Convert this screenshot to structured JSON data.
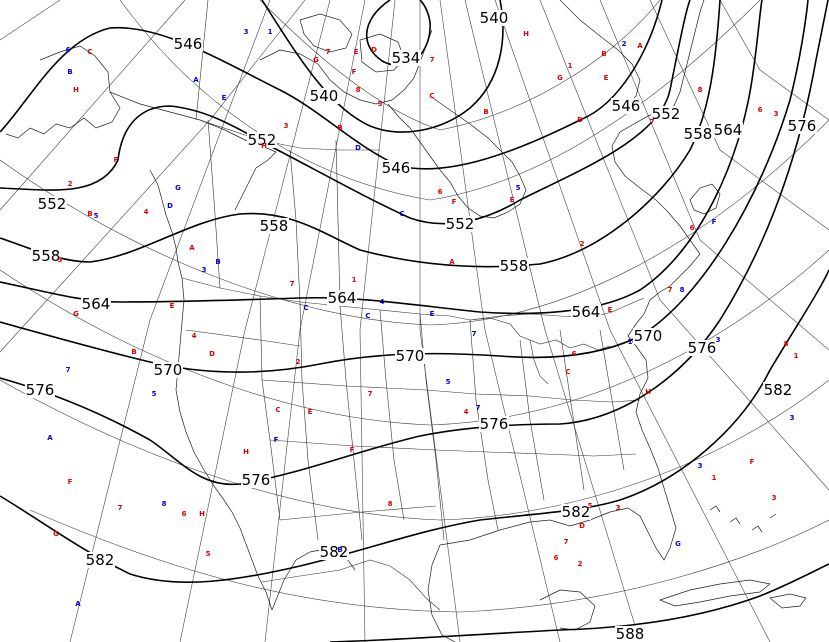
{
  "map": {
    "type": "upper-air-height-contour",
    "colors": {
      "contour": "#000000",
      "red_station": "#e00000",
      "blue_station": "#0000dd"
    },
    "contours": [
      {
        "value": "534"
      },
      {
        "value": "540"
      },
      {
        "value": "546"
      },
      {
        "value": "552"
      },
      {
        "value": "558"
      },
      {
        "value": "564"
      },
      {
        "value": "570"
      },
      {
        "value": "576"
      },
      {
        "value": "582"
      },
      {
        "value": "588"
      }
    ],
    "contour_labels": [
      {
        "text": "534",
        "ref": 0
      },
      {
        "text": "540",
        "ref": 1
      },
      {
        "text": "540",
        "ref": 2
      },
      {
        "text": "546",
        "ref": 3
      },
      {
        "text": "546",
        "ref": 4
      },
      {
        "text": "546",
        "ref": 5
      },
      {
        "text": "552",
        "ref": 6
      },
      {
        "text": "552",
        "ref": 7
      },
      {
        "text": "552",
        "ref": 8
      },
      {
        "text": "552",
        "ref": 9
      },
      {
        "text": "558",
        "ref": 10
      },
      {
        "text": "558",
        "ref": 11
      },
      {
        "text": "558",
        "ref": 12
      },
      {
        "text": "558",
        "ref": 13
      },
      {
        "text": "564",
        "ref": 14
      },
      {
        "text": "564",
        "ref": 15
      },
      {
        "text": "564",
        "ref": 16
      },
      {
        "text": "564",
        "ref": 17
      },
      {
        "text": "570",
        "ref": 18
      },
      {
        "text": "570",
        "ref": 19
      },
      {
        "text": "570",
        "ref": 20
      },
      {
        "text": "576",
        "ref": 21
      },
      {
        "text": "576",
        "ref": 22
      },
      {
        "text": "576",
        "ref": 23
      },
      {
        "text": "576",
        "ref": 24
      },
      {
        "text": "576",
        "ref": 25
      },
      {
        "text": "582",
        "ref": 26
      },
      {
        "text": "582",
        "ref": 27
      },
      {
        "text": "582",
        "ref": 28
      },
      {
        "text": "582",
        "ref": 29
      },
      {
        "text": "588",
        "ref": 30
      }
    ],
    "stations": [
      {
        "t": "6",
        "c": "blue"
      },
      {
        "t": "C",
        "c": "red"
      },
      {
        "t": "B",
        "c": "blue"
      },
      {
        "t": "H",
        "c": "red"
      },
      {
        "t": "3",
        "c": "blue"
      },
      {
        "t": "1",
        "c": "blue"
      },
      {
        "t": "G",
        "c": "red"
      },
      {
        "t": "7",
        "c": "red"
      },
      {
        "t": "E",
        "c": "red"
      },
      {
        "t": "D",
        "c": "red"
      },
      {
        "t": "7",
        "c": "red"
      },
      {
        "t": "F",
        "c": "red"
      },
      {
        "t": "H",
        "c": "red"
      },
      {
        "t": "2",
        "c": "blue"
      },
      {
        "t": "A",
        "c": "red"
      },
      {
        "t": "G",
        "c": "red"
      },
      {
        "t": "1",
        "c": "red"
      },
      {
        "t": "B",
        "c": "red"
      },
      {
        "t": "E",
        "c": "red"
      },
      {
        "t": "A",
        "c": "blue"
      },
      {
        "t": "E",
        "c": "blue"
      },
      {
        "t": "3",
        "c": "red"
      },
      {
        "t": "B",
        "c": "red"
      },
      {
        "t": "5",
        "c": "red"
      },
      {
        "t": "C",
        "c": "red"
      },
      {
        "t": "B",
        "c": "red"
      },
      {
        "t": "D",
        "c": "red"
      },
      {
        "t": "7",
        "c": "red"
      },
      {
        "t": "8",
        "c": "red"
      },
      {
        "t": "6",
        "c": "red"
      },
      {
        "t": "8",
        "c": "red"
      },
      {
        "t": "3",
        "c": "red"
      },
      {
        "t": "H",
        "c": "red"
      },
      {
        "t": "D",
        "c": "blue"
      },
      {
        "t": "F",
        "c": "red"
      },
      {
        "t": "2",
        "c": "red"
      },
      {
        "t": "G",
        "c": "blue"
      },
      {
        "t": "B",
        "c": "red"
      },
      {
        "t": "5",
        "c": "blue"
      },
      {
        "t": "4",
        "c": "red"
      },
      {
        "t": "D",
        "c": "blue"
      },
      {
        "t": "6",
        "c": "red"
      },
      {
        "t": "F",
        "c": "red"
      },
      {
        "t": "5",
        "c": "blue"
      },
      {
        "t": "E",
        "c": "red"
      },
      {
        "t": "C",
        "c": "blue"
      },
      {
        "t": "2",
        "c": "red"
      },
      {
        "t": "6",
        "c": "red"
      },
      {
        "t": "F",
        "c": "blue"
      },
      {
        "t": "A",
        "c": "red"
      },
      {
        "t": "B",
        "c": "blue"
      },
      {
        "t": "3",
        "c": "blue"
      },
      {
        "t": "3",
        "c": "red"
      },
      {
        "t": "7",
        "c": "red"
      },
      {
        "t": "1",
        "c": "red"
      },
      {
        "t": "A",
        "c": "red"
      },
      {
        "t": "4",
        "c": "blue"
      },
      {
        "t": "C",
        "c": "blue"
      },
      {
        "t": "C",
        "c": "blue"
      },
      {
        "t": "E",
        "c": "red"
      },
      {
        "t": "G",
        "c": "red"
      },
      {
        "t": "E",
        "c": "blue"
      },
      {
        "t": "7",
        "c": "blue"
      },
      {
        "t": "E",
        "c": "red"
      },
      {
        "t": "7",
        "c": "red"
      },
      {
        "t": "8",
        "c": "blue"
      },
      {
        "t": "1",
        "c": "blue"
      },
      {
        "t": "3",
        "c": "blue"
      },
      {
        "t": "B",
        "c": "red"
      },
      {
        "t": "4",
        "c": "red"
      },
      {
        "t": "D",
        "c": "red"
      },
      {
        "t": "2",
        "c": "red"
      },
      {
        "t": "6",
        "c": "red"
      },
      {
        "t": "C",
        "c": "red"
      },
      {
        "t": "7",
        "c": "blue"
      },
      {
        "t": "5",
        "c": "blue"
      },
      {
        "t": "7",
        "c": "red"
      },
      {
        "t": "E",
        "c": "red"
      },
      {
        "t": "C",
        "c": "red"
      },
      {
        "t": "5",
        "c": "blue"
      },
      {
        "t": "4",
        "c": "red"
      },
      {
        "t": "7",
        "c": "blue"
      },
      {
        "t": "H",
        "c": "red"
      },
      {
        "t": "8",
        "c": "red"
      },
      {
        "t": "1",
        "c": "red"
      },
      {
        "t": "3",
        "c": "blue"
      },
      {
        "t": "A",
        "c": "blue"
      },
      {
        "t": "H",
        "c": "red"
      },
      {
        "t": "F",
        "c": "blue"
      },
      {
        "t": "F",
        "c": "red"
      },
      {
        "t": "3",
        "c": "blue"
      },
      {
        "t": "F",
        "c": "red"
      },
      {
        "t": "1",
        "c": "red"
      },
      {
        "t": "3",
        "c": "red"
      },
      {
        "t": "F",
        "c": "red"
      },
      {
        "t": "7",
        "c": "red"
      },
      {
        "t": "8",
        "c": "blue"
      },
      {
        "t": "6",
        "c": "red"
      },
      {
        "t": "H",
        "c": "red"
      },
      {
        "t": "G",
        "c": "red"
      },
      {
        "t": "5",
        "c": "red"
      },
      {
        "t": "B",
        "c": "blue"
      },
      {
        "t": "8",
        "c": "red"
      },
      {
        "t": "A",
        "c": "blue"
      },
      {
        "t": "5",
        "c": "red"
      },
      {
        "t": "3",
        "c": "red"
      },
      {
        "t": "D",
        "c": "red"
      },
      {
        "t": "7",
        "c": "red"
      },
      {
        "t": "G",
        "c": "blue"
      },
      {
        "t": "6",
        "c": "red"
      },
      {
        "t": "2",
        "c": "red"
      }
    ]
  }
}
